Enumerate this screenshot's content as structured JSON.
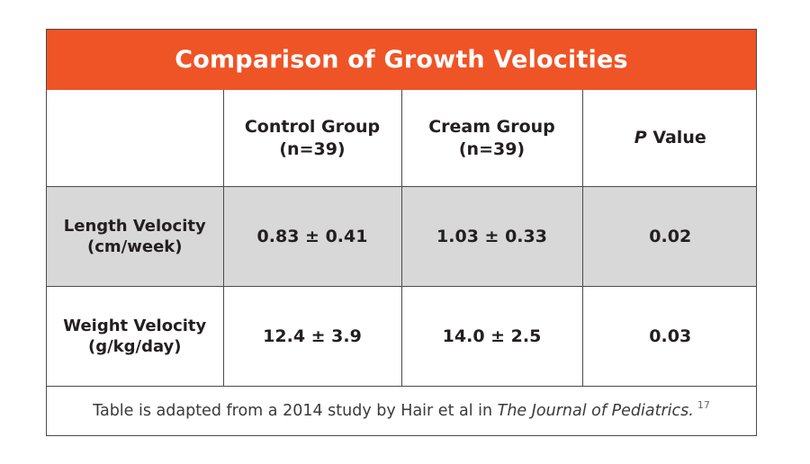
{
  "chart_data": {
    "type": "table",
    "title": "Comparison of Growth Velocities",
    "columns": [
      {
        "line1": "",
        "line2": ""
      },
      {
        "line1": "Control Group",
        "line2": "(n=39)"
      },
      {
        "line1": "Cream Group",
        "line2": "(n=39)"
      },
      {
        "italic_prefix": "P",
        "rest": " Value"
      }
    ],
    "rows": [
      {
        "label_line1": "Length Velocity",
        "label_line2": "(cm/week)",
        "control": "0.83 ± 0.41",
        "cream": "1.03 ± 0.33",
        "p_value": "0.02"
      },
      {
        "label_line1": "Weight Velocity",
        "label_line2": "(g/kg/day)",
        "control": "12.4 ± 3.9",
        "cream": "14.0 ± 2.5",
        "p_value": "0.03"
      }
    ],
    "footnote": {
      "text": "Table is adapted from a 2014 study by Hair et al in ",
      "journal": "The Journal of Pediatrics.",
      "ref": "17"
    },
    "colors": {
      "title_background": "#ef5426",
      "title_text": "#ffffff",
      "shaded_row": "#d8d8d8",
      "border": "#4a4a4a"
    }
  }
}
